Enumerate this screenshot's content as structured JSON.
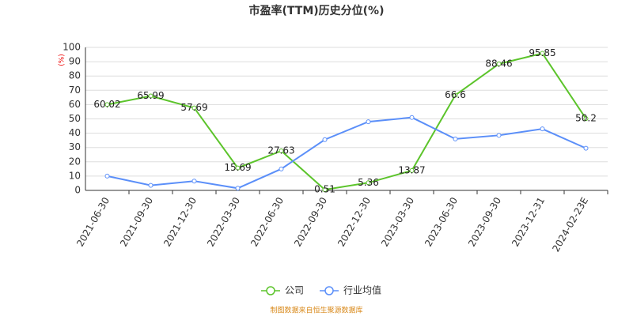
{
  "chart_data": {
    "type": "line",
    "title": "市盈率(TTM)历史分位(%)",
    "y_label": "(%)",
    "categories": [
      "2021-06-30",
      "2021-09-30",
      "2021-12-30",
      "2022-03-30",
      "2022-06-30",
      "2022-09-30",
      "2022-12-30",
      "2023-03-30",
      "2023-06-30",
      "2023-09-30",
      "2023-12-31",
      "2024-02-23E"
    ],
    "series": [
      {
        "name": "公司",
        "color": "#5cc42b",
        "values": [
          60.02,
          65.99,
          57.69,
          15.69,
          27.63,
          0.51,
          5.36,
          13.87,
          66.6,
          88.46,
          95.85,
          50.2
        ],
        "labels": true
      },
      {
        "name": "行业均值",
        "color": "#5b8ff9",
        "values": [
          10,
          3.5,
          6.5,
          1.5,
          15,
          35.5,
          48,
          51,
          36,
          38.5,
          43,
          29.5
        ],
        "labels": false
      }
    ],
    "ylim": [
      0,
      100
    ],
    "yticks": [
      0,
      10,
      20,
      30,
      40,
      50,
      60,
      70,
      80,
      90,
      100
    ],
    "grid": true,
    "source": "制图数据来自恒生聚源数据库"
  }
}
